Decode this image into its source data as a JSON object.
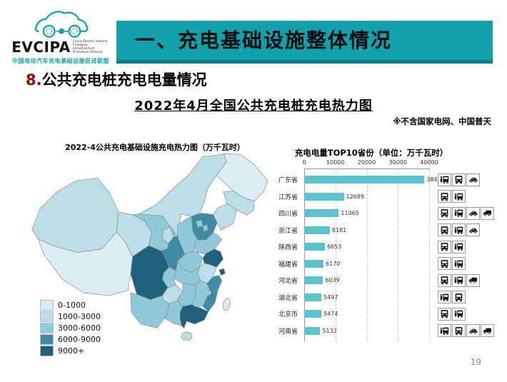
{
  "logo": {
    "acronym": "EVCIPA",
    "tagline_en": "China Electric Vehicle Charging Infrastructure Promotion Alliance",
    "tagline_cn": "中国电动汽车充电基础设施促进联盟",
    "brand_color": "#10A1AC"
  },
  "header": {
    "title": "一、充电基础设施整体情况",
    "bg_color": "#10A1AC"
  },
  "section": {
    "number": "8.",
    "title": "公共充电桩充电电量情况",
    "number_color": "#A30000"
  },
  "main_title": "2022年4月全国公共充电桩充电热力图",
  "note": "※不含国家电网、中国普天",
  "map": {
    "title": "2022-4公共充电基础设施充电热力图（万千瓦时）",
    "legend": [
      {
        "label": "0-1000",
        "color": "#D9EDF3"
      },
      {
        "label": "1000-3000",
        "color": "#BBDEE9"
      },
      {
        "label": "3000-6000",
        "color": "#8FC9DA"
      },
      {
        "label": "6000-9000",
        "color": "#3D8CA6"
      },
      {
        "label": "9000+",
        "color": "#1F617B"
      }
    ]
  },
  "map_buckets": {
    "b1": "#D9EDF3",
    "b2": "#BBDEE9",
    "b3": "#8FC9DA",
    "b4": "#3D8CA6",
    "b5": "#1F617B"
  },
  "chart_data": {
    "type": "bar",
    "orientation": "horizontal",
    "title": "充电电量TOP10省份（单位：万千瓦时）",
    "categories": [
      "广东省",
      "江苏省",
      "四川省",
      "浙江省",
      "陕西省",
      "福建省",
      "河北省",
      "湖北省",
      "北京市",
      "河南省"
    ],
    "values": [
      38467,
      12689,
      11065,
      8181,
      6653,
      6170,
      6039,
      5497,
      5474,
      5132
    ],
    "xlim": [
      0,
      40000
    ],
    "xticks": [
      0,
      10000,
      20000,
      30000,
      40000
    ],
    "bar_color": "#5BC3CE",
    "grid": "vertical-dashed",
    "axis_position": "top",
    "row_icons": [
      [
        "charging-bus",
        "bus",
        "sedan"
      ],
      [
        "bus",
        "charging-bus"
      ],
      [
        "bus",
        "charging-bus",
        "sedan",
        "truck"
      ],
      [
        "bus",
        "charging-bus",
        "sedan"
      ],
      [
        "bus",
        "charging-bus"
      ],
      [
        "bus",
        "charging-bus"
      ],
      [
        "bus",
        "charging-bus",
        "truck"
      ],
      [
        "charging-bus",
        "bus"
      ],
      [
        "bus",
        "charging-bus"
      ],
      [
        "charging-bus",
        "bus",
        "sedan",
        "truck"
      ]
    ]
  },
  "page": {
    "number": "19"
  }
}
